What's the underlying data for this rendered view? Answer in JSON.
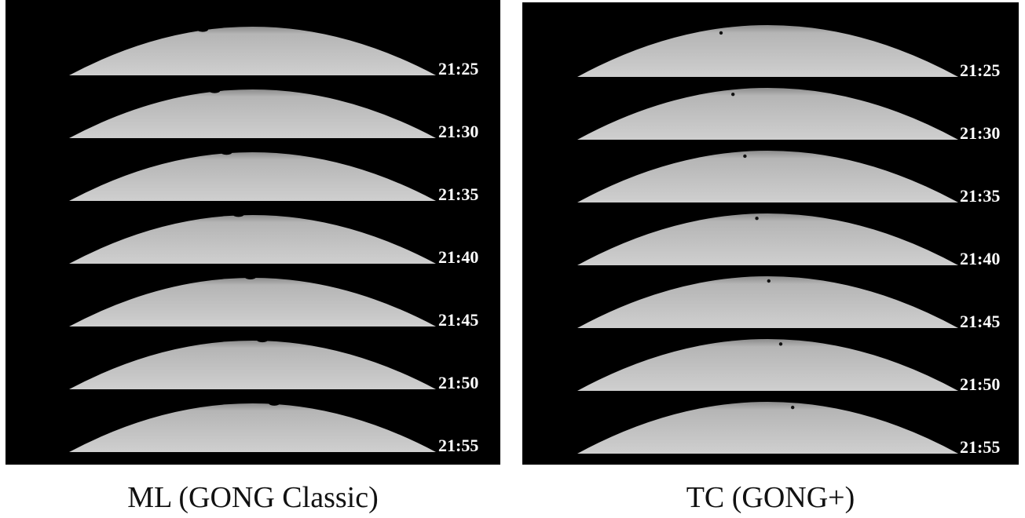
{
  "panels": [
    {
      "caption": "ML (GONG Classic)",
      "frames": [
        "21:25",
        "21:30",
        "21:35",
        "21:40",
        "21:45",
        "21:50",
        "21:55"
      ]
    },
    {
      "caption": "TC (GONG+)",
      "frames": [
        "21:25",
        "21:30",
        "21:35",
        "21:40",
        "21:45",
        "21:50",
        "21:55"
      ]
    }
  ]
}
